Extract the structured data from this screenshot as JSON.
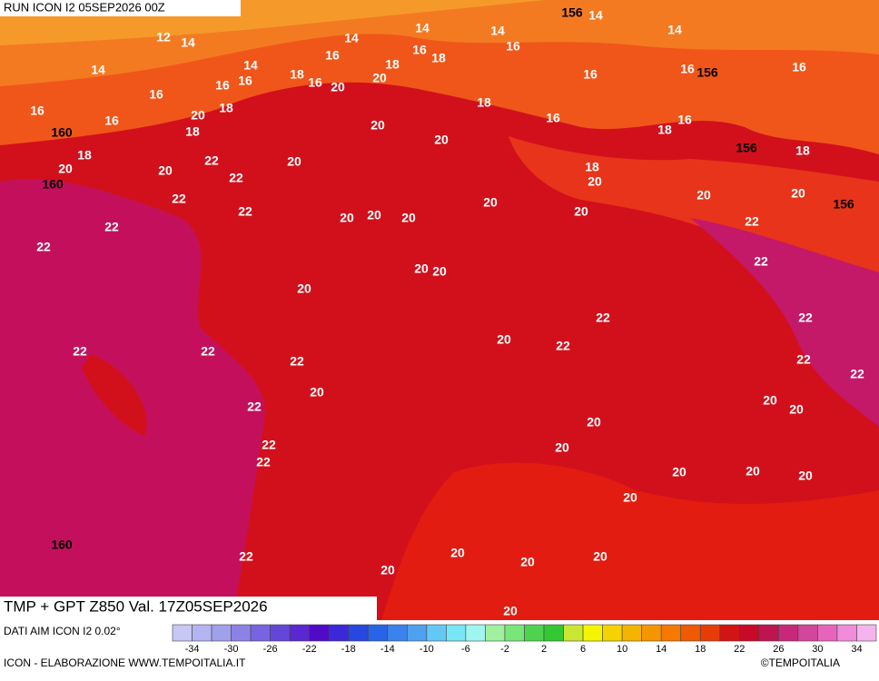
{
  "header": {
    "title": "RUN ICON I2 05SEP2026 00Z"
  },
  "footer": {
    "product": "TMP + GPT Z850 Val. 17Z05SEP2026",
    "source": "DATI AIM ICON I2 0.02°",
    "credit": "ICON - ELABORAZIONE WWW.TEMPOITALIA.IT",
    "brand": "©TEMPOITALIA"
  },
  "colorbar": {
    "ticks": [
      -34,
      -30,
      -26,
      -22,
      -18,
      -14,
      -10,
      -6,
      -2,
      2,
      6,
      10,
      14,
      18,
      22,
      26,
      30,
      34
    ],
    "colors": [
      "#c8c8f5",
      "#b4b4f0",
      "#a0a0ec",
      "#8c82e6",
      "#7864e0",
      "#6446d8",
      "#5a28d0",
      "#500ac8",
      "#3c28d8",
      "#2846e0",
      "#2864e6",
      "#3c82ec",
      "#50a0f0",
      "#64c8f5",
      "#78e6f5",
      "#a0f5f0",
      "#a0f0a0",
      "#78e678",
      "#50d250",
      "#32c832",
      "#c8e632",
      "#f5f500",
      "#f5d200",
      "#f5b400",
      "#f59600",
      "#f57800",
      "#f05a00",
      "#e63c0a",
      "#d21414",
      "#c80a28",
      "#be1450",
      "#c8287a",
      "#d2469b",
      "#e664bc",
      "#f08cd8",
      "#f5b4ee"
    ]
  },
  "map_labels": [
    14,
    12,
    14,
    14,
    14,
    14,
    156,
    14,
    14,
    16,
    16,
    16,
    14,
    18,
    16,
    20,
    16,
    20,
    18,
    16,
    18,
    16,
    16,
    16,
    156,
    16,
    16,
    16,
    160,
    18,
    20,
    160,
    20,
    18,
    18,
    20,
    20,
    18,
    16,
    16,
    18,
    156,
    18,
    22,
    20,
    22,
    22,
    20,
    22,
    22,
    22,
    20,
    20,
    20,
    20,
    20,
    20,
    18,
    20,
    20,
    156,
    22,
    22,
    20,
    20,
    20,
    22,
    22,
    22,
    22,
    22,
    20,
    22,
    22,
    20,
    22,
    22,
    20,
    20,
    20,
    20,
    22,
    22,
    20,
    20,
    20,
    20,
    160,
    22,
    20,
    20,
    20,
    20,
    20
  ]
}
